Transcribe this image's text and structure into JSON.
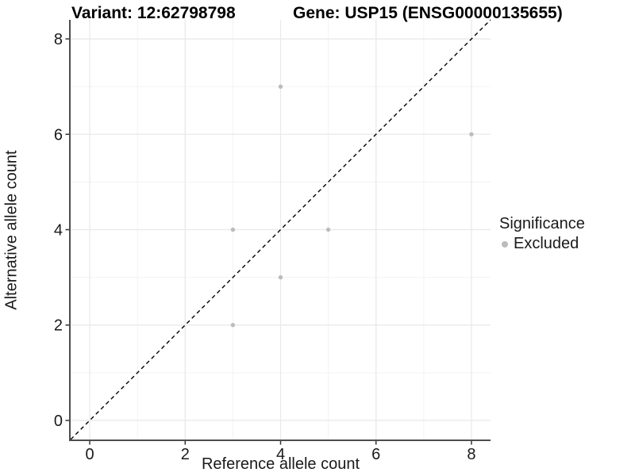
{
  "chart_data": {
    "type": "scatter",
    "title_left": "Variant: 12:62798798",
    "title_right": "Gene: USP15 (ENSG00000135655)",
    "xlabel": "Reference allele count",
    "ylabel": "Alternative allele count",
    "xlim": [
      -0.4,
      8.4
    ],
    "ylim": [
      -0.4,
      8.4
    ],
    "xticks": [
      0,
      2,
      4,
      6,
      8
    ],
    "yticks": [
      0,
      2,
      4,
      6,
      8
    ],
    "minor_xticks": [
      1,
      3,
      5,
      7
    ],
    "minor_yticks": [
      1,
      3,
      5,
      7
    ],
    "grid": "major+minor",
    "identity_line": {
      "style": "dashed",
      "slope": 1,
      "intercept": 0,
      "color": "#000000"
    },
    "series": [
      {
        "name": "Excluded",
        "color": "#bcbcbc",
        "marker": "circle",
        "points": [
          [
            3,
            2
          ],
          [
            3,
            4
          ],
          [
            4,
            3
          ],
          [
            4,
            7
          ],
          [
            5,
            4
          ],
          [
            8,
            6
          ]
        ]
      }
    ],
    "legend": {
      "title": "Significance",
      "position": "right",
      "entries": [
        {
          "label": "Excluded",
          "color": "#bcbcbc"
        }
      ]
    }
  },
  "colors": {
    "background": "#ffffff",
    "axis_line": "#4d4d4d",
    "tick_mark": "#333333",
    "tick_text": "#1a1a1a",
    "grid_major": "#e9e9e9",
    "grid_minor": "#f3f3f3",
    "point": "#bcbcbc",
    "dashed_line": "#000000"
  }
}
